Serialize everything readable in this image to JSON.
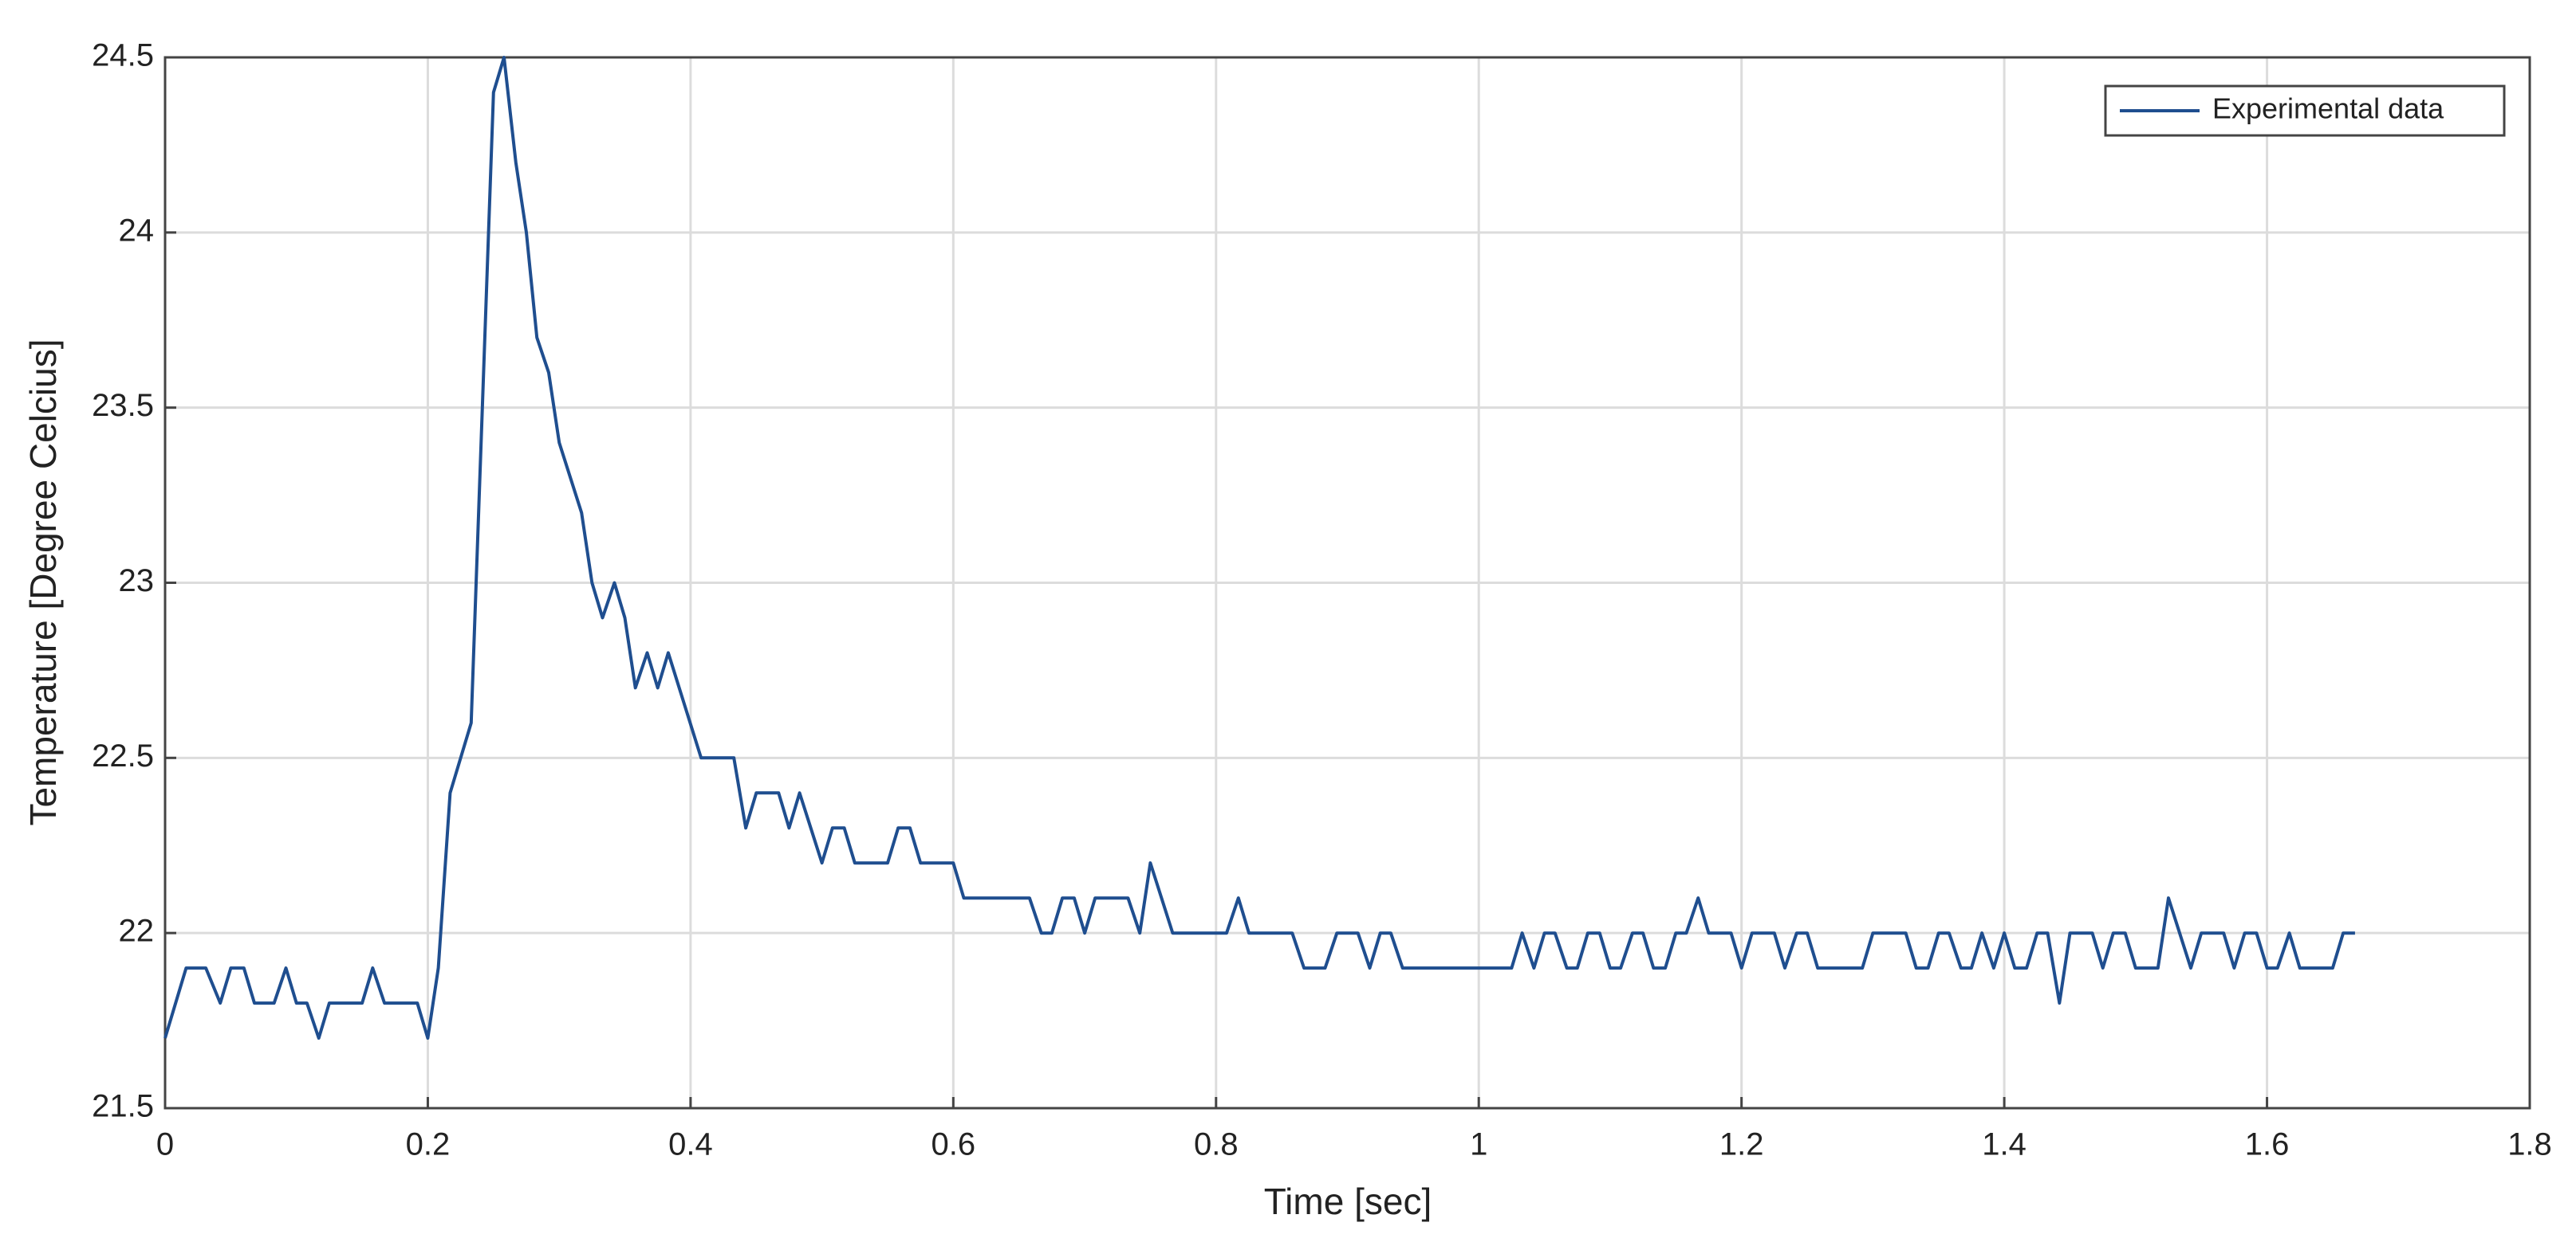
{
  "chart_data": {
    "type": "line",
    "xlabel": "Time [sec]",
    "ylabel": "Temperature [Degree Celcius]",
    "x": [
      0,
      0.016,
      0.031,
      0.042,
      0.05,
      0.06,
      0.068,
      0.083,
      0.092,
      0.1,
      0.108,
      0.117,
      0.125,
      0.15,
      0.158,
      0.167,
      0.192,
      0.2,
      0.208,
      0.217,
      0.233,
      0.25,
      0.258,
      0.267,
      0.275,
      0.283,
      0.292,
      0.3,
      0.317,
      0.325,
      0.333,
      0.342,
      0.35,
      0.358,
      0.367,
      0.375,
      0.383,
      0.408,
      0.433,
      0.442,
      0.45,
      0.467,
      0.475,
      0.483,
      0.5,
      0.508,
      0.517,
      0.525,
      0.55,
      0.558,
      0.567,
      0.575,
      0.6,
      0.608,
      0.658,
      0.667,
      0.675,
      0.683,
      0.692,
      0.7,
      0.708,
      0.733,
      0.742,
      0.75,
      0.767,
      0.808,
      0.817,
      0.825,
      0.858,
      0.867,
      0.883,
      0.892,
      0.908,
      0.917,
      0.925,
      0.933,
      0.942,
      1.025,
      1.033,
      1.042,
      1.05,
      1.058,
      1.067,
      1.075,
      1.083,
      1.092,
      1.1,
      1.108,
      1.117,
      1.125,
      1.133,
      1.142,
      1.15,
      1.158,
      1.167,
      1.175,
      1.192,
      1.2,
      1.208,
      1.225,
      1.233,
      1.242,
      1.25,
      1.258,
      1.292,
      1.3,
      1.325,
      1.333,
      1.342,
      1.35,
      1.358,
      1.367,
      1.375,
      1.383,
      1.392,
      1.4,
      1.408,
      1.417,
      1.425,
      1.433,
      1.442,
      1.45,
      1.467,
      1.475,
      1.483,
      1.492,
      1.5,
      1.517,
      1.525,
      1.542,
      1.55,
      1.567,
      1.575,
      1.583,
      1.592,
      1.6,
      1.608,
      1.617,
      1.625,
      1.65,
      1.658,
      1.667
    ],
    "series": [
      {
        "name": "Experimental data",
        "color": "#1f4e8f",
        "values": [
          21.7,
          21.9,
          21.9,
          21.8,
          21.9,
          21.9,
          21.8,
          21.8,
          21.9,
          21.8,
          21.8,
          21.7,
          21.8,
          21.8,
          21.9,
          21.8,
          21.8,
          21.7,
          21.9,
          22.4,
          22.6,
          24.4,
          24.5,
          24.2,
          24.0,
          23.7,
          23.6,
          23.4,
          23.2,
          23.0,
          22.9,
          23.0,
          22.9,
          22.7,
          22.8,
          22.7,
          22.8,
          22.5,
          22.5,
          22.3,
          22.4,
          22.4,
          22.3,
          22.4,
          22.2,
          22.3,
          22.3,
          22.2,
          22.2,
          22.3,
          22.3,
          22.2,
          22.2,
          22.1,
          22.1,
          22.0,
          22.0,
          22.1,
          22.1,
          22.0,
          22.1,
          22.1,
          22.0,
          22.2,
          22.0,
          22.0,
          22.1,
          22.0,
          22.0,
          21.9,
          21.9,
          22.0,
          22.0,
          21.9,
          22.0,
          22.0,
          21.9,
          21.9,
          22.0,
          21.9,
          22.0,
          22.0,
          21.9,
          21.9,
          22.0,
          22.0,
          21.9,
          21.9,
          22.0,
          22.0,
          21.9,
          21.9,
          22.0,
          22.0,
          22.1,
          22.0,
          22.0,
          21.9,
          22.0,
          22.0,
          21.9,
          22.0,
          22.0,
          21.9,
          21.9,
          22.0,
          22.0,
          21.9,
          21.9,
          22.0,
          22.0,
          21.9,
          21.9,
          22.0,
          21.9,
          22.0,
          21.9,
          21.9,
          22.0,
          22.0,
          21.8,
          22.0,
          22.0,
          21.9,
          22.0,
          22.0,
          21.9,
          21.9,
          22.1,
          21.9,
          22.0,
          22.0,
          21.9,
          22.0,
          22.0,
          21.9,
          21.9,
          22.0,
          21.9,
          21.9,
          22.0,
          22.0
        ]
      }
    ],
    "xlim": [
      0,
      1.8
    ],
    "xticks": [
      0,
      0.2,
      0.4,
      0.6,
      0.8,
      1,
      1.2,
      1.4,
      1.6,
      1.8
    ],
    "ylim": [
      21.5,
      24.5
    ],
    "yticks": [
      21.5,
      22,
      22.5,
      23,
      23.5,
      24,
      24.5
    ],
    "grid": true,
    "legend": "upper right"
  }
}
